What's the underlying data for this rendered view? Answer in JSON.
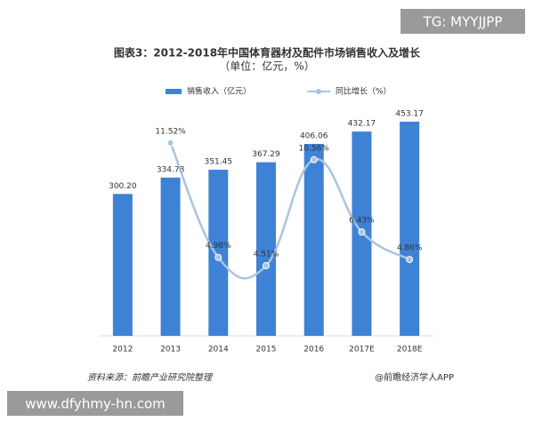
{
  "chart_data": {
    "type": "combo",
    "title": "图表3：2012-2018年中国体育器材及配件市场销售收入及增长",
    "subtitle": "（单位：亿元，%）",
    "categories": [
      "2012",
      "2013",
      "2014",
      "2015",
      "2016",
      "2017E",
      "2018E"
    ],
    "series": [
      {
        "name": "销售收入（亿元）",
        "type": "bar",
        "color": "#3e82d6",
        "values": [
          300.2,
          334.78,
          351.45,
          367.29,
          406.06,
          432.17,
          453.17
        ],
        "value_labels": [
          "300.20",
          "334.78",
          "351.45",
          "367.29",
          "406.06",
          "432.17",
          "453.17"
        ]
      },
      {
        "name": "同比增长（%）",
        "type": "line",
        "axis": "y2",
        "color": "#a9c4e0",
        "values": [
          null,
          11.52,
          4.98,
          4.51,
          10.56,
          6.43,
          4.86
        ],
        "value_labels": [
          null,
          "11.52%",
          "4.98%",
          "4.51%",
          "10.56%",
          "6.43%",
          "4.86%"
        ]
      }
    ],
    "ylim": [
      0,
      500
    ],
    "y2lim": [
      0.5,
      14
    ],
    "source": "资料来源：前瞻产业研究院整理",
    "credit": "@前瞻经济学人APP"
  },
  "watermarks": [
    "TG: MYYJJPP",
    "www.dfyhmy-hn.com"
  ]
}
